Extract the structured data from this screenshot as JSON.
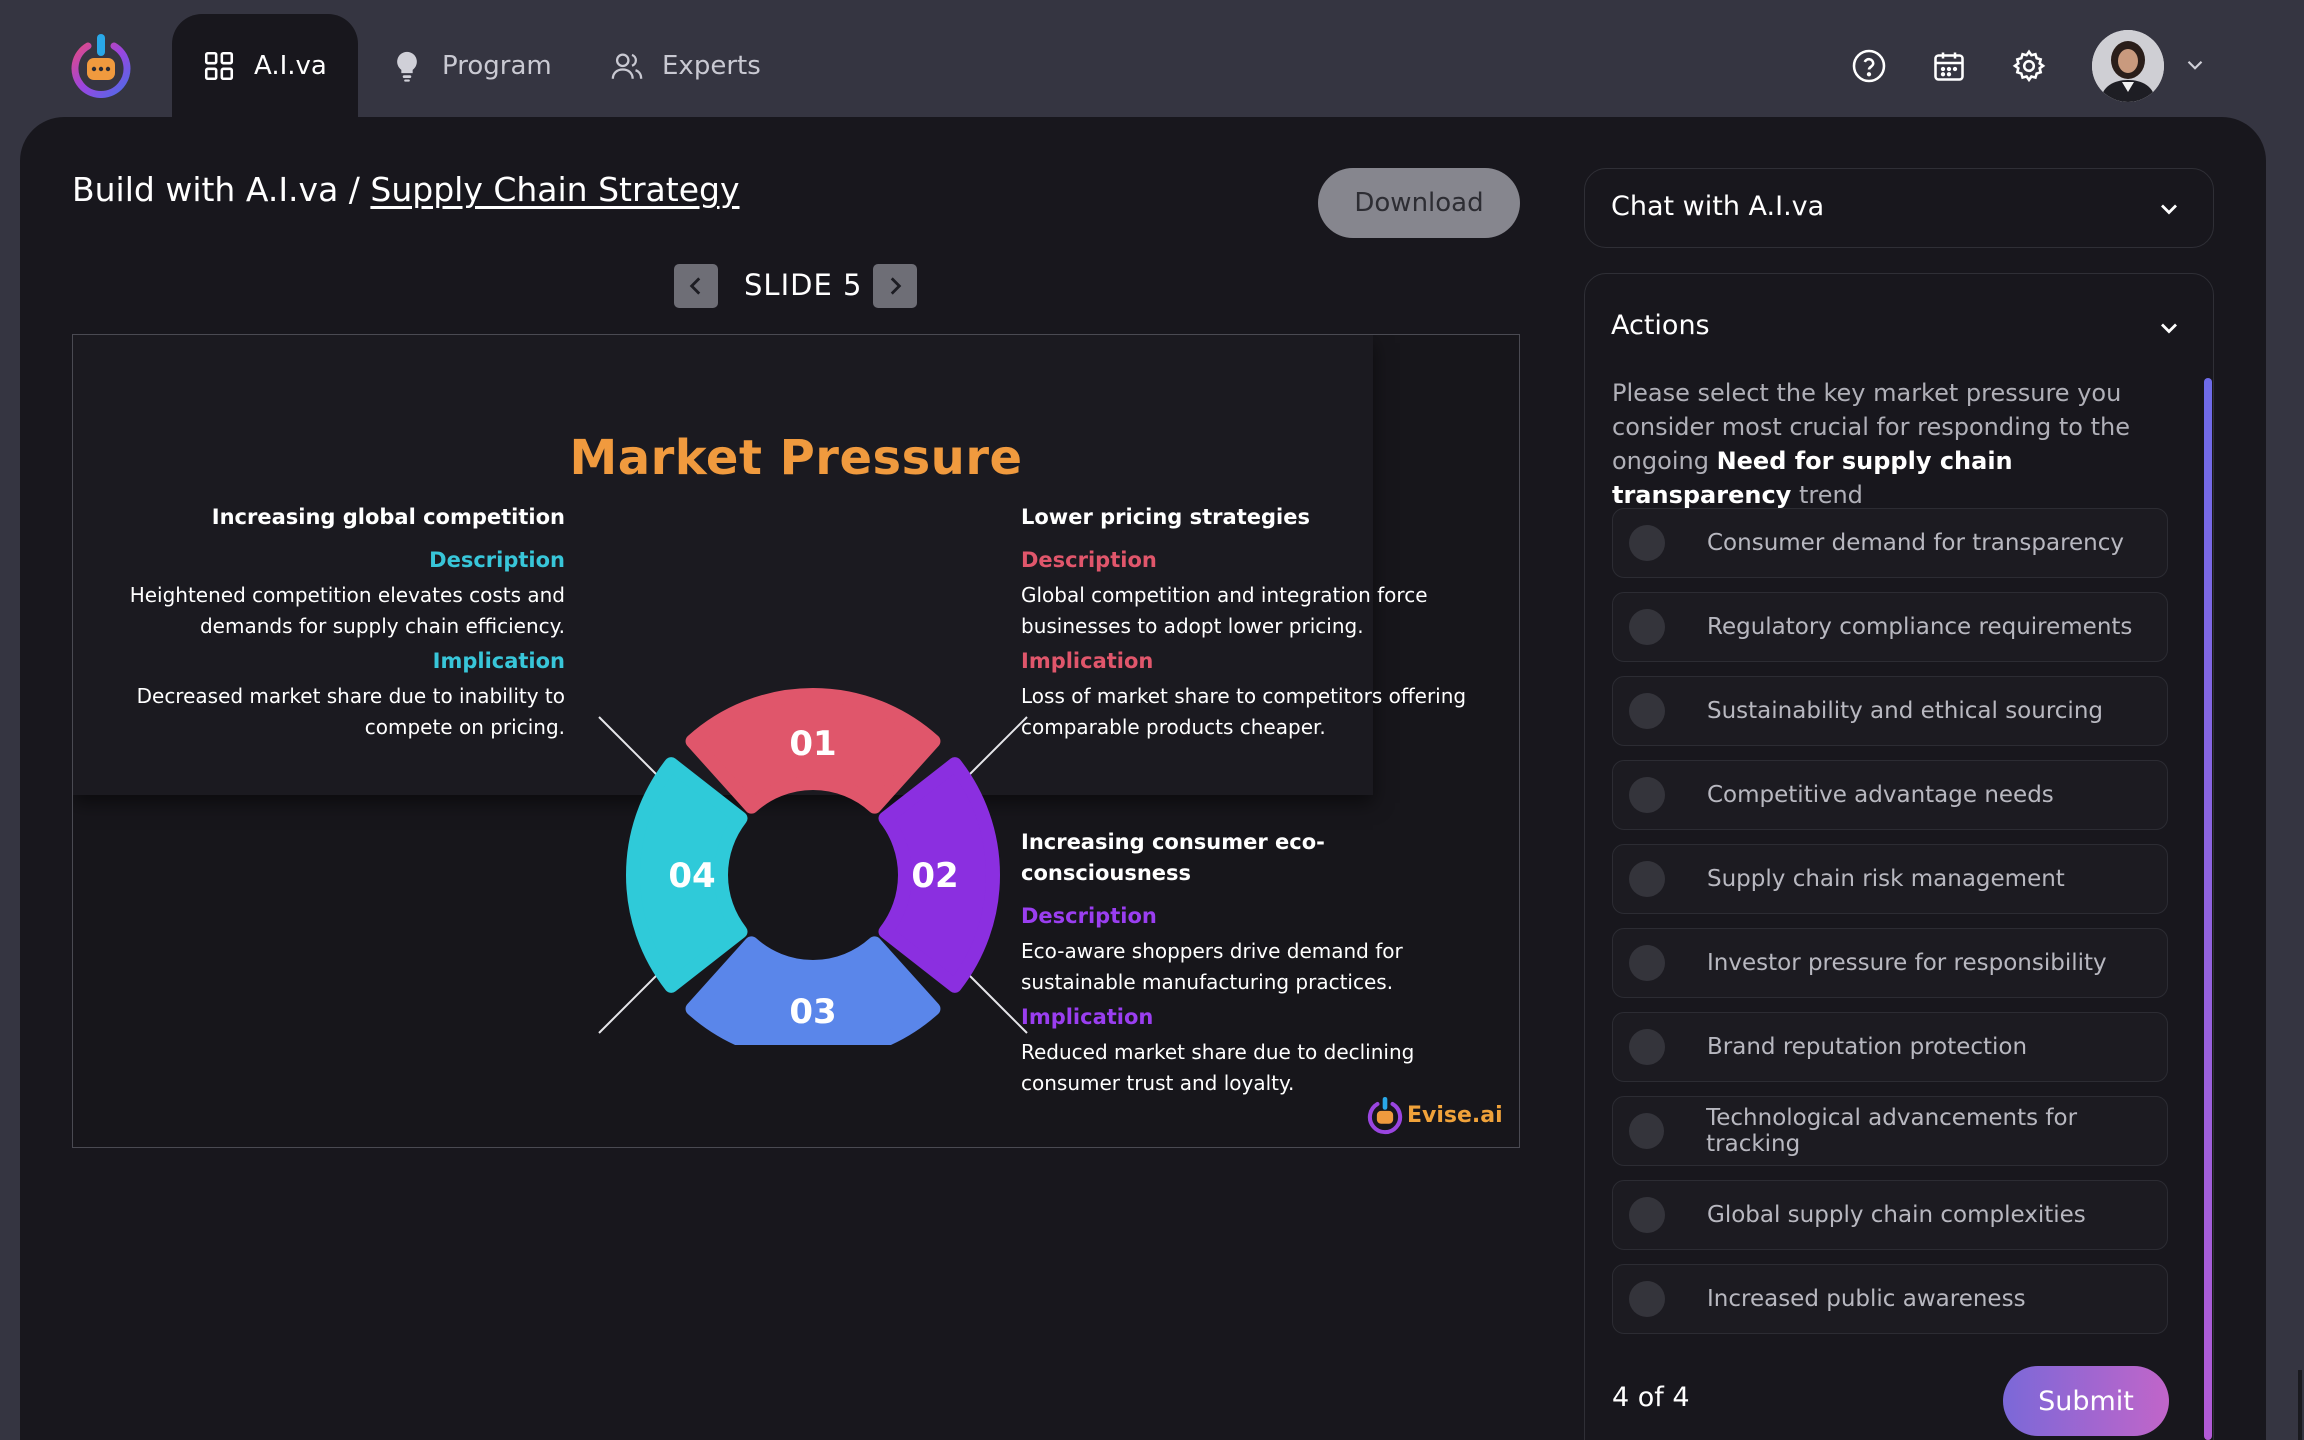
{
  "nav": {
    "logo_icon": "power-chat-logo-icon",
    "tabs": [
      {
        "label": "A.I.va",
        "icon": "grid-icon",
        "active": true
      },
      {
        "label": "Program",
        "icon": "lightbulb-icon",
        "active": false
      },
      {
        "label": "Experts",
        "icon": "users-icon",
        "active": false
      }
    ],
    "right_icons": [
      "help-circle-icon",
      "calendar-icon",
      "gear-icon"
    ],
    "avatar_icon": "user-avatar",
    "avatar_caret_icon": "chevron-down-icon"
  },
  "breadcrumb": {
    "prefix": "Build with A.I.va / ",
    "current": "Supply Chain Strategy"
  },
  "download_label": "Download",
  "slide_nav": {
    "label": "SLIDE 5",
    "prev_icon": "chevron-left-icon",
    "next_icon": "chevron-right-icon"
  },
  "slide": {
    "title": "Market Pressure",
    "segments": [
      "01",
      "02",
      "03",
      "04"
    ],
    "blocks": {
      "top_left": {
        "heading": "Increasing global competition",
        "description_label": "Description",
        "description": "Heightened competition elevates costs and demands for supply chain efficiency.",
        "implication_label": "Implication",
        "implication": "Decreased market share due to inability to compete on pricing."
      },
      "top_right": {
        "heading": "Lower pricing strategies",
        "description_label": "Description",
        "description": "Global competition and integration force businesses to adopt lower pricing.",
        "implication_label": "Implication",
        "implication": "Loss of market share to competitors offering comparable products cheaper."
      },
      "bottom_right": {
        "heading": "Increasing consumer eco-consciousness",
        "description_label": "Description",
        "description": "Eco-aware shoppers drive demand for sustainable manufacturing practices.",
        "implication_label": "Implication",
        "implication": "Reduced market share due to declining consumer trust and loyalty."
      }
    },
    "brand": "Evise.ai",
    "colors": {
      "title": "#f09a3e",
      "seg01": "#e0566b",
      "seg02": "#8b2fe0",
      "seg03": "#5a86ea",
      "seg04": "#2fcad9"
    }
  },
  "chat": {
    "title": "Chat with A.I.va",
    "icon": "chevron-down-icon"
  },
  "actions": {
    "title": "Actions",
    "icon": "chevron-down-icon",
    "prompt_pre": "Please select the key market pressure you consider most crucial for responding to the ongoing ",
    "prompt_bold": "Need for supply chain transparency",
    "prompt_post": " trend",
    "options": [
      "Consumer demand for transparency",
      "Regulatory compliance requirements",
      "Sustainability and ethical sourcing",
      "Competitive advantage needs",
      "Supply chain risk management",
      "Investor pressure for responsibility",
      "Brand reputation protection",
      "Technological advancements for tracking",
      "Global supply chain complexities",
      "Increased public awareness"
    ],
    "progress": "4 of 4",
    "submit_label": "Submit"
  }
}
